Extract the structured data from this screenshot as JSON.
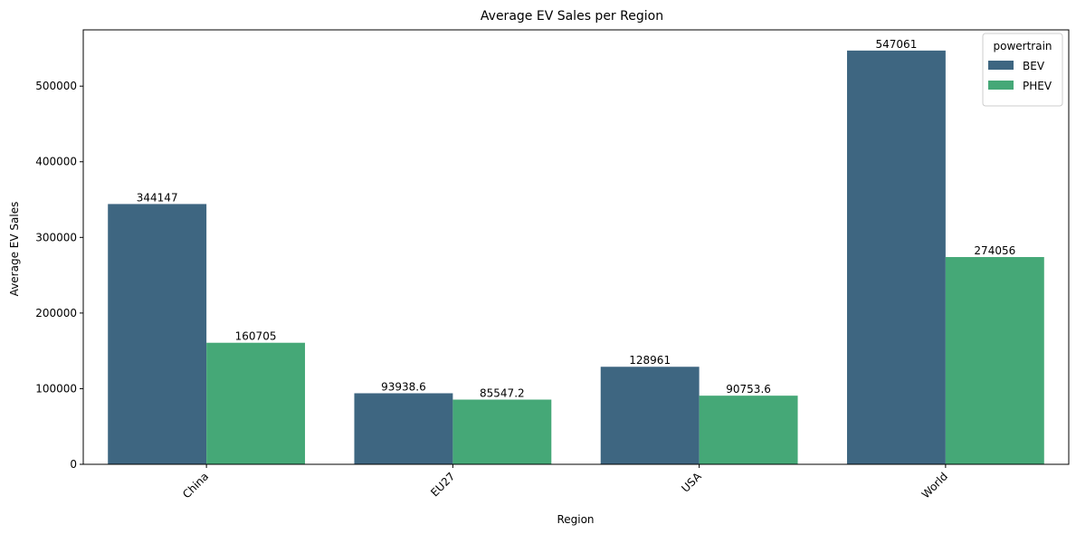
{
  "chart_data": {
    "type": "bar",
    "title": "Average EV Sales per Region",
    "xlabel": "Region",
    "ylabel": "Average EV Sales",
    "categories": [
      "China",
      "EU27",
      "USA",
      "World"
    ],
    "series": [
      {
        "name": "BEV",
        "values": [
          344147,
          93938.6,
          128961,
          547061
        ],
        "labels": [
          "344147",
          "93938.6",
          "128961",
          "547061"
        ],
        "color": "#3e6681"
      },
      {
        "name": "PHEV",
        "values": [
          160705,
          85547.2,
          90753.6,
          274056
        ],
        "labels": [
          "160705",
          "85547.2",
          "90753.6",
          "274056"
        ],
        "color": "#45a877"
      }
    ],
    "yticks": [
      0,
      100000,
      200000,
      300000,
      400000,
      500000
    ],
    "ytick_labels": [
      "0",
      "100000",
      "200000",
      "300000",
      "400000",
      "500000"
    ],
    "ylim": [
      0,
      574414
    ],
    "legend": {
      "title": "powertrain",
      "placement": "top-right"
    },
    "grid": false
  }
}
